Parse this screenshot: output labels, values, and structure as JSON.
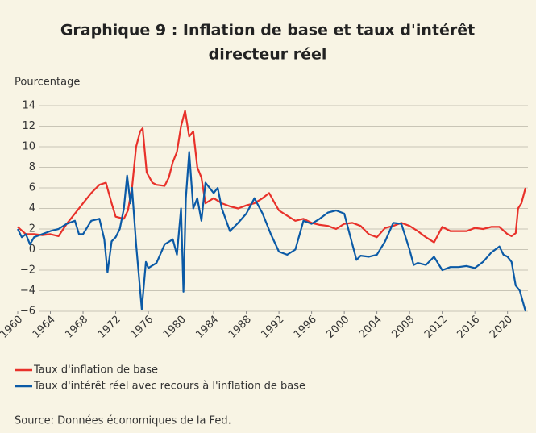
{
  "chart_data": {
    "type": "line",
    "title": "Graphique 9 : Inflation de base et taux d'intérêt",
    "subtitle": "directeur réel",
    "y_label": "Pourcentage",
    "source": "Source:   Données économiques de la Fed.",
    "xlim": [
      1960,
      2022.5
    ],
    "xticks": [
      1960,
      1964,
      1968,
      1972,
      1976,
      1980,
      1984,
      1988,
      1992,
      1996,
      2000,
      2004,
      2008,
      2012,
      2016,
      2020
    ],
    "ylim": [
      -6,
      14
    ],
    "yticks": [
      {
        "value": -6,
        "label": "−6"
      },
      {
        "value": -4,
        "label": "−4"
      },
      {
        "value": -2,
        "label": "−2"
      },
      0,
      2,
      4,
      6,
      8,
      10,
      12,
      14
    ],
    "grid": true,
    "series": [
      {
        "name": "Taux d'inflation de base",
        "color": "#e8312a",
        "x": [
          1960,
          1961,
          1962,
          1963,
          1964,
          1965,
          1966,
          1967,
          1968,
          1969,
          1970,
          1970.8,
          1971.5,
          1972,
          1973,
          1973.5,
          1974,
          1974.5,
          1975,
          1975.3,
          1975.8,
          1976.5,
          1977,
          1978,
          1978.5,
          1979,
          1979.5,
          1980,
          1980.5,
          1981,
          1981.5,
          1982,
          1982.5,
          1983,
          1984,
          1985,
          1986,
          1987,
          1988,
          1989,
          1990,
          1990.8,
          1991.5,
          1992,
          1993,
          1994,
          1995,
          1996,
          1997,
          1998,
          1999,
          2000,
          2001,
          2002,
          2003,
          2004,
          2005,
          2006,
          2007,
          2008,
          2009,
          2010,
          2011,
          2012,
          2013,
          2014,
          2015,
          2016,
          2017,
          2018,
          2019,
          2020,
          2020.5,
          2021,
          2021.3,
          2021.7,
          2022.2
        ],
        "values": [
          2.2,
          1.5,
          1.5,
          1.4,
          1.5,
          1.3,
          2.5,
          3.5,
          4.5,
          5.5,
          6.3,
          6.5,
          4.5,
          3.2,
          3.0,
          3.8,
          6,
          10,
          11.5,
          11.8,
          7.5,
          6.5,
          6.3,
          6.2,
          7,
          8.5,
          9.5,
          12,
          13.5,
          11,
          11.5,
          8,
          7,
          4.5,
          5,
          4.5,
          4.2,
          4,
          4.3,
          4.5,
          5,
          5.5,
          4.5,
          3.8,
          3.3,
          2.8,
          3.0,
          2.6,
          2.4,
          2.3,
          2.0,
          2.5,
          2.6,
          2.3,
          1.5,
          1.2,
          2.1,
          2.3,
          2.6,
          2.3,
          1.8,
          1.2,
          0.7,
          2.2,
          1.8,
          1.8,
          1.8,
          2.1,
          2.0,
          2.2,
          2.2,
          1.5,
          1.3,
          1.6,
          4,
          4.5,
          6.0
        ]
      },
      {
        "name": "Taux d'intérêt réel avec recours à l'inflation de base",
        "color": "#0b5aa6",
        "x": [
          1960,
          1960.5,
          1961,
          1961.5,
          1962,
          1963,
          1964,
          1965,
          1966,
          1967,
          1967.5,
          1968,
          1969,
          1970,
          1970.6,
          1971,
          1971.5,
          1972,
          1972.5,
          1973,
          1973.4,
          1973.8,
          1974,
          1974.5,
          1975,
          1975.2,
          1975.7,
          1976,
          1977,
          1978,
          1979,
          1979.5,
          1980,
          1980.3,
          1980.6,
          1981,
          1981.5,
          1982,
          1982.5,
          1983,
          1984,
          1984.5,
          1985,
          1986,
          1987,
          1988,
          1989,
          1990,
          1991,
          1992,
          1993,
          1994,
          1995,
          1996,
          1997,
          1998,
          1999,
          2000,
          2001,
          2001.5,
          2002,
          2003,
          2004,
          2005,
          2006,
          2007,
          2008,
          2008.5,
          2009,
          2010,
          2011,
          2012,
          2013,
          2014,
          2015,
          2016,
          2017,
          2018,
          2019,
          2019.5,
          2020,
          2020.5,
          2021,
          2021.5,
          2022.2
        ],
        "values": [
          2.0,
          1.2,
          1.5,
          0.5,
          1.2,
          1.5,
          1.8,
          2.0,
          2.5,
          2.8,
          1.5,
          1.5,
          2.8,
          3,
          1,
          -2.2,
          0.8,
          1.2,
          2.0,
          4.0,
          7.2,
          4.5,
          6.0,
          0.5,
          -4,
          -5.8,
          -1.2,
          -1.8,
          -1.3,
          0.5,
          1.0,
          -0.5,
          4,
          -4.1,
          5,
          9.5,
          4,
          5,
          2.8,
          6.5,
          5.5,
          6,
          4,
          1.8,
          2.6,
          3.5,
          5.0,
          3.5,
          1.5,
          -0.2,
          -0.5,
          0.0,
          2.8,
          2.5,
          3.0,
          3.6,
          3.8,
          3.5,
          0.5,
          -1.0,
          -0.6,
          -0.7,
          -0.5,
          0.8,
          2.6,
          2.5,
          0,
          -1.5,
          -1.3,
          -1.5,
          -0.7,
          -2.0,
          -1.7,
          -1.7,
          -1.6,
          -1.8,
          -1.2,
          -0.3,
          0.3,
          -0.5,
          -0.7,
          -1.2,
          -3.5,
          -4,
          -6
        ]
      }
    ]
  }
}
